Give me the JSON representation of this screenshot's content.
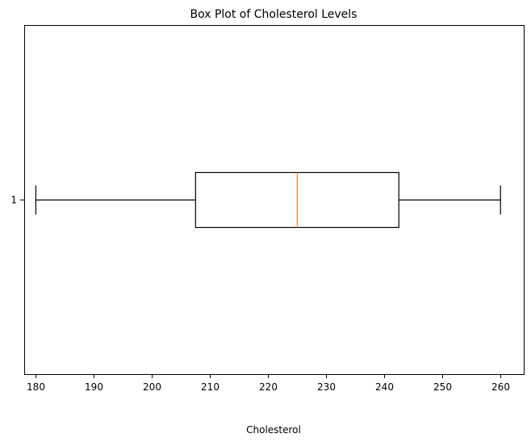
{
  "chart_data": {
    "type": "boxplot",
    "title": "Box Plot of Cholesterol Levels",
    "xlabel": "Cholesterol",
    "ylabel": "",
    "orientation": "horizontal",
    "xlim": [
      178,
      264
    ],
    "x_ticks": [
      180,
      190,
      200,
      210,
      220,
      230,
      240,
      250,
      260
    ],
    "y_ticks": [
      "1"
    ],
    "grid": false,
    "series": [
      {
        "category": "1",
        "whisker_low": 180,
        "q1": 207.5,
        "median": 225,
        "q3": 242.5,
        "whisker_high": 260
      }
    ],
    "colors": {
      "box": "#000000",
      "whisker": "#000000",
      "median": "#ff7f0e"
    }
  }
}
